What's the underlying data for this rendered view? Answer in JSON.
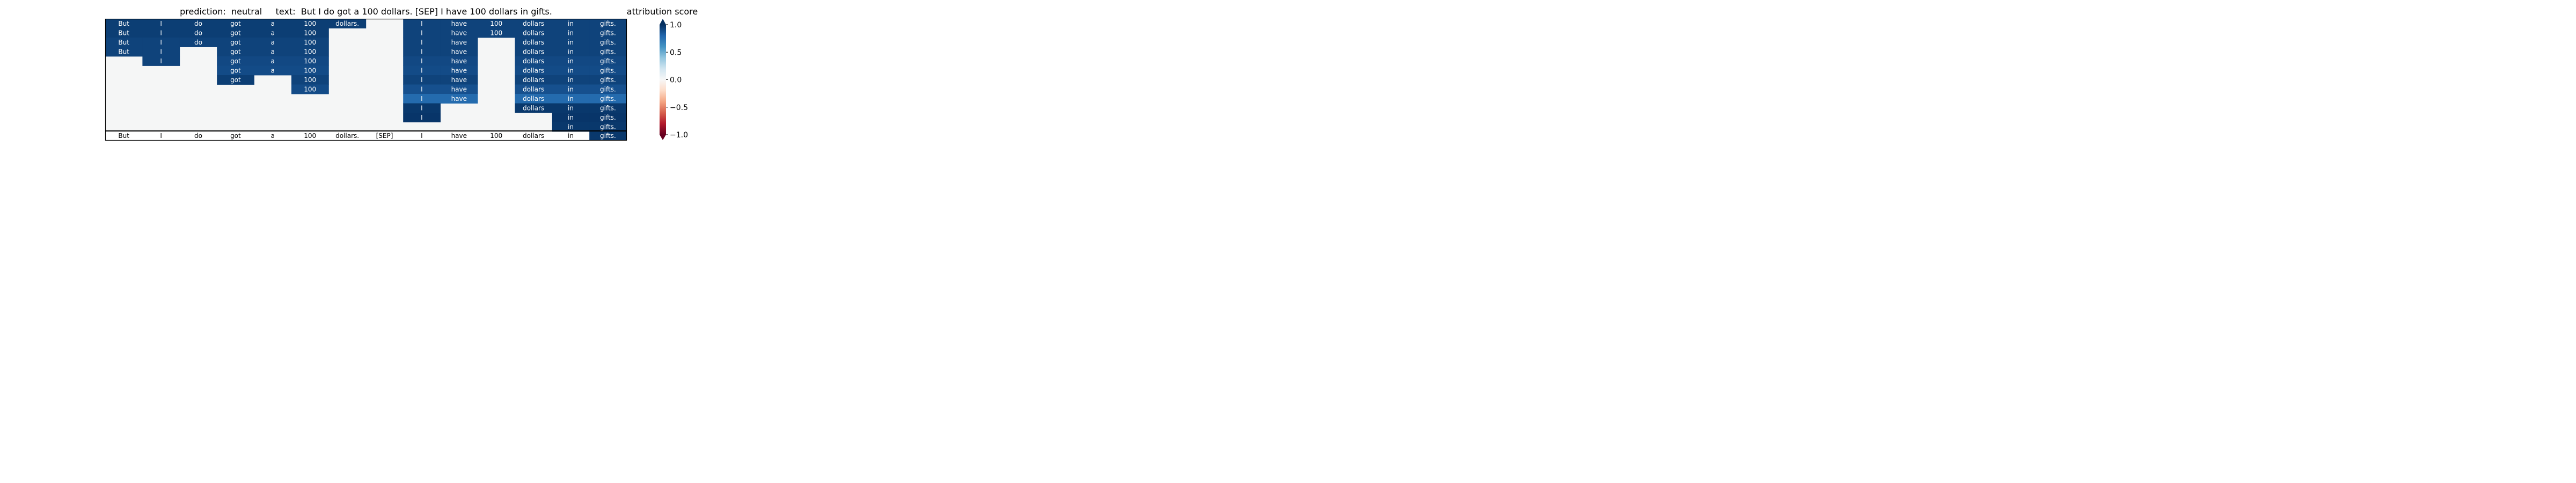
{
  "chart_data": {
    "type": "heatmap",
    "title": "prediction:  neutral     text:  But I do got a 100 dollars. [SEP] I have 100 dollars in gifts.",
    "tokens": [
      "But",
      "I",
      "do",
      "got",
      "a",
      "100",
      "dollars.",
      "[SEP]",
      "I",
      "have",
      "100",
      "dollars",
      "in",
      "gifts."
    ],
    "bottom_row_highlight": [
      13
    ],
    "rows": [
      [
        0.95,
        0.95,
        0.95,
        0.95,
        0.95,
        0.95,
        0.95,
        null,
        0.93,
        0.93,
        0.93,
        0.93,
        0.93,
        0.93
      ],
      [
        0.95,
        0.95,
        0.95,
        0.95,
        0.95,
        0.95,
        null,
        null,
        0.93,
        0.93,
        0.93,
        0.93,
        0.93,
        0.93
      ],
      [
        0.93,
        0.93,
        0.93,
        0.93,
        0.93,
        0.93,
        null,
        null,
        0.93,
        0.93,
        null,
        0.93,
        0.93,
        0.93
      ],
      [
        0.93,
        0.93,
        null,
        0.93,
        0.93,
        0.93,
        null,
        null,
        0.93,
        0.93,
        null,
        0.93,
        0.93,
        0.93
      ],
      [
        null,
        0.93,
        null,
        0.91,
        0.91,
        0.91,
        null,
        null,
        0.91,
        0.91,
        null,
        0.91,
        0.91,
        0.91
      ],
      [
        null,
        null,
        null,
        0.9,
        0.9,
        0.9,
        null,
        null,
        0.9,
        0.9,
        null,
        0.9,
        0.9,
        0.9
      ],
      [
        null,
        null,
        null,
        0.95,
        null,
        0.93,
        null,
        null,
        0.93,
        0.93,
        null,
        0.93,
        0.93,
        0.93
      ],
      [
        null,
        null,
        null,
        null,
        null,
        0.9,
        null,
        null,
        0.88,
        0.88,
        null,
        0.88,
        0.88,
        0.88
      ],
      [
        null,
        null,
        null,
        null,
        null,
        null,
        null,
        null,
        0.78,
        0.78,
        null,
        0.78,
        0.78,
        0.78
      ],
      [
        null,
        null,
        null,
        null,
        null,
        null,
        null,
        null,
        0.97,
        null,
        null,
        0.97,
        0.97,
        0.97
      ],
      [
        null,
        null,
        null,
        null,
        null,
        null,
        null,
        null,
        0.98,
        null,
        null,
        null,
        0.98,
        0.98
      ],
      [
        null,
        null,
        null,
        null,
        null,
        null,
        null,
        null,
        null,
        null,
        null,
        null,
        0.97,
        0.97
      ]
    ],
    "colorbar": {
      "label": "attribution score",
      "min": -1.0,
      "max": 1.0,
      "ticks": [
        1.0,
        0.5,
        0.0,
        -0.5,
        -1.0
      ],
      "tick_labels": [
        "1.0",
        "0.5",
        "0.0",
        "−0.5",
        "−1.0"
      ],
      "colormap": "RdBu"
    }
  }
}
